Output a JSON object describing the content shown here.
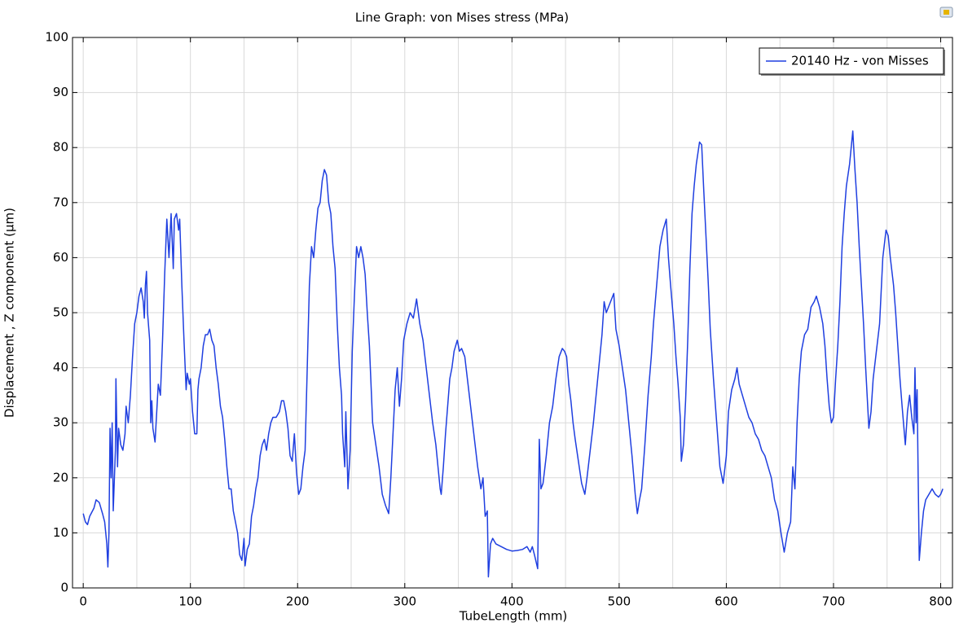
{
  "chart_data": {
    "type": "line",
    "title": "Line Graph: von Mises stress (MPa)",
    "x_label": "TubeLength (mm)",
    "y_label": "Displacement , Z component (µm)",
    "xlim": [
      -10,
      811
    ],
    "ylim": [
      0,
      100
    ],
    "xticks": [
      0,
      100,
      200,
      300,
      400,
      500,
      600,
      700,
      800
    ],
    "xminor": [
      50,
      150,
      250,
      350,
      450,
      550,
      650,
      750
    ],
    "yticks": [
      0,
      10,
      20,
      30,
      40,
      50,
      60,
      70,
      80,
      90,
      100
    ],
    "grid": true,
    "legend": "upper right",
    "x": [
      0,
      2,
      4,
      6,
      10,
      12,
      15,
      18,
      20,
      22,
      23,
      24,
      25,
      26,
      27,
      28,
      30,
      30.5,
      32,
      33,
      35,
      37,
      39,
      40,
      42,
      44,
      46,
      48,
      50,
      52,
      54,
      56,
      57,
      58,
      59,
      60,
      62,
      63,
      64,
      65,
      67,
      68,
      70,
      72,
      74,
      76,
      78,
      80,
      82,
      84,
      85,
      87,
      89,
      90,
      92,
      94,
      96,
      97,
      99,
      100,
      102,
      104,
      106,
      107,
      108,
      110,
      112,
      114,
      116,
      118,
      120,
      122,
      124,
      126,
      128,
      130,
      132,
      134,
      136,
      138,
      140,
      142,
      144,
      146,
      148,
      150,
      151,
      153,
      155,
      157,
      159,
      161,
      163,
      165,
      167,
      169,
      171,
      173,
      175,
      177,
      180,
      183,
      185,
      187,
      189,
      191,
      193,
      195,
      197,
      199,
      201,
      203,
      205,
      207,
      209,
      211,
      213,
      215,
      217,
      219,
      221,
      223,
      225,
      227,
      229,
      231,
      233,
      235,
      237,
      239,
      241,
      242,
      244,
      245,
      247,
      249,
      251,
      253,
      255,
      257,
      259,
      261,
      263,
      265,
      267,
      270,
      273,
      276,
      279,
      282,
      285,
      287,
      289,
      291,
      293,
      295,
      297,
      299,
      302,
      305,
      308,
      311,
      314,
      317,
      320,
      323,
      326,
      329,
      331,
      333,
      334,
      336,
      338,
      340,
      342,
      344,
      346,
      349,
      351,
      353,
      356,
      359,
      362,
      365,
      368,
      371,
      373,
      375,
      377,
      378,
      380,
      382,
      385,
      390,
      395,
      400,
      405,
      410,
      414,
      417,
      419,
      421,
      424,
      425.5,
      427,
      429,
      432,
      435,
      438,
      441,
      444,
      447,
      449,
      451,
      453,
      455,
      457,
      459,
      462,
      465,
      468,
      470,
      473,
      476,
      479,
      482,
      484,
      486,
      488,
      490,
      492,
      495,
      497,
      500,
      503,
      506,
      509,
      512,
      515,
      517,
      519,
      521,
      524,
      527,
      530,
      532,
      535,
      538,
      541,
      544,
      546,
      548,
      551,
      553,
      555,
      557,
      558,
      560,
      562,
      564,
      566,
      568,
      570,
      572,
      575,
      577,
      579,
      581,
      583,
      585,
      588,
      591,
      594,
      597,
      600,
      602,
      605,
      608,
      610,
      612,
      615,
      618,
      621,
      624,
      627,
      630,
      633,
      636,
      639,
      642,
      645,
      648,
      651,
      654,
      657,
      660,
      662,
      664,
      666,
      668,
      670,
      673,
      676,
      679,
      682,
      684,
      687,
      690,
      692,
      694,
      696,
      698,
      700,
      702,
      704,
      706,
      708,
      710,
      712,
      715,
      718,
      720,
      722,
      724,
      726,
      728,
      730,
      733,
      735,
      737,
      740,
      743,
      746,
      749,
      751,
      753,
      756,
      758,
      760,
      762,
      764,
      767,
      769,
      771,
      773,
      775,
      776,
      777,
      778,
      779,
      780,
      782,
      784,
      786,
      789,
      792,
      795,
      798,
      800,
      802
    ],
    "series": [
      {
        "name": "20140 Hz - von Misses",
        "color": "#1f3fe0",
        "values": [
          13.5,
          12,
          11.5,
          13,
          14.5,
          16,
          15.5,
          13.5,
          12,
          8,
          3.8,
          10,
          29,
          20,
          30,
          14,
          25,
          38,
          22,
          29,
          26,
          25,
          28,
          33,
          30,
          35,
          42,
          48,
          50,
          53,
          54.5,
          52,
          49,
          55,
          57.5,
          50,
          45,
          30,
          34,
          29,
          26.5,
          30,
          37,
          35,
          45,
          57,
          67,
          60,
          68,
          58,
          67,
          68,
          65,
          67,
          55,
          45,
          36,
          39,
          37,
          38,
          32,
          28,
          28,
          36,
          38,
          40,
          44,
          46,
          46,
          47,
          45,
          44,
          40,
          37,
          33,
          31,
          27,
          22,
          18,
          18,
          14,
          12,
          10,
          6,
          5,
          9,
          4,
          7,
          8,
          13,
          15,
          18,
          20,
          24,
          26,
          27,
          25,
          28,
          30,
          31,
          31,
          32,
          34,
          34,
          32,
          29,
          24,
          23,
          28,
          21,
          17,
          18,
          22,
          25,
          40,
          55,
          62,
          60,
          65,
          69,
          70,
          74,
          76,
          75,
          70,
          68,
          62,
          58,
          48,
          40,
          35,
          28,
          22,
          32,
          18,
          25,
          43,
          53,
          62,
          60,
          62,
          60,
          57,
          50,
          44,
          30,
          26,
          22,
          17,
          15,
          13.5,
          20,
          28,
          36,
          40,
          33,
          38,
          45,
          48,
          50,
          49,
          52.5,
          48,
          45,
          40,
          35,
          30,
          26,
          22,
          18,
          17,
          22,
          28,
          33,
          38,
          40,
          43,
          45,
          43,
          43.5,
          42,
          37,
          32,
          27,
          22,
          18,
          20,
          13,
          14,
          2,
          8,
          9,
          8,
          7.5,
          7,
          6.7,
          6.8,
          7,
          7.5,
          6.5,
          7.5,
          6,
          3.5,
          27,
          18,
          19,
          24,
          30,
          33,
          38,
          42,
          43.5,
          43,
          42,
          37,
          34,
          30,
          27,
          23,
          19,
          17,
          20,
          25,
          30,
          36,
          42,
          46,
          52,
          50,
          51,
          52,
          53.5,
          47,
          44,
          40,
          36,
          30,
          24,
          17,
          13.5,
          16,
          18,
          26,
          35,
          42,
          48,
          55,
          62,
          65,
          67,
          60,
          55,
          48,
          42,
          37,
          31,
          23,
          26,
          34,
          45,
          58,
          68,
          73,
          77,
          81,
          80.5,
          72,
          64,
          56,
          47,
          38,
          30,
          22,
          19,
          24,
          32,
          36,
          38,
          40,
          37,
          35,
          33,
          31,
          30,
          28,
          27,
          25,
          24,
          22,
          20,
          16,
          14,
          10,
          6.5,
          10,
          12,
          22,
          18,
          30,
          38,
          43,
          46,
          47,
          51,
          52,
          53,
          51,
          48,
          44,
          38,
          33,
          30,
          31,
          38,
          44,
          52,
          62,
          68,
          73,
          77,
          83,
          76,
          70,
          62,
          55,
          48,
          40,
          29,
          32,
          38,
          43,
          48,
          60,
          65,
          64,
          60,
          55,
          50,
          44,
          38,
          33,
          26,
          32,
          35,
          31,
          28,
          40,
          30,
          36,
          20,
          5,
          10,
          14,
          16,
          17,
          18,
          17,
          16.5,
          17,
          18
        ]
      }
    ]
  }
}
